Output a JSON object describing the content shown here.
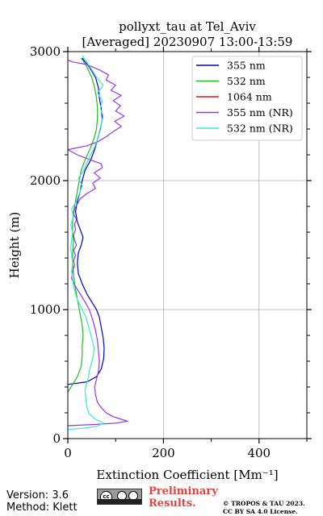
{
  "chart_data": {
    "type": "line",
    "title": "pollyxt_tau at Tel_Aviv",
    "subtitle": "[Averaged] 20230907 13:00-13:59",
    "xlabel": "Extinction Coefficient [Mm⁻¹]",
    "ylabel": "Height (m)",
    "xlim": [
      0,
      500
    ],
    "ylim": [
      0,
      3000
    ],
    "xticks": [
      "0",
      "200",
      "400"
    ],
    "yticks": [
      "0",
      "1000",
      "2000",
      "3000"
    ],
    "grid": true,
    "legend": "top-right",
    "series": [
      {
        "name": "355 nm",
        "color": "#0000cc",
        "points": [
          [
            0,
            420
          ],
          [
            40,
            440
          ],
          [
            60,
            480
          ],
          [
            70,
            540
          ],
          [
            75,
            620
          ],
          [
            76,
            700
          ],
          [
            74,
            780
          ],
          [
            70,
            860
          ],
          [
            66,
            940
          ],
          [
            60,
            1000
          ],
          [
            50,
            1060
          ],
          [
            40,
            1120
          ],
          [
            30,
            1200
          ],
          [
            22,
            1280
          ],
          [
            20,
            1360
          ],
          [
            22,
            1440
          ],
          [
            28,
            1500
          ],
          [
            32,
            1560
          ],
          [
            26,
            1620
          ],
          [
            20,
            1680
          ],
          [
            16,
            1760
          ],
          [
            20,
            1840
          ],
          [
            26,
            1920
          ],
          [
            30,
            2000
          ],
          [
            36,
            2080
          ],
          [
            48,
            2160
          ],
          [
            56,
            2240
          ],
          [
            62,
            2320
          ],
          [
            68,
            2400
          ],
          [
            72,
            2480
          ],
          [
            70,
            2560
          ],
          [
            66,
            2640
          ],
          [
            64,
            2720
          ],
          [
            58,
            2800
          ],
          [
            45,
            2880
          ],
          [
            30,
            2950
          ]
        ]
      },
      {
        "name": "532 nm",
        "color": "#22bb22",
        "points": [
          [
            0,
            360
          ],
          [
            10,
            420
          ],
          [
            20,
            480
          ],
          [
            28,
            560
          ],
          [
            30,
            640
          ],
          [
            30,
            720
          ],
          [
            32,
            800
          ],
          [
            30,
            880
          ],
          [
            26,
            960
          ],
          [
            22,
            1040
          ],
          [
            18,
            1120
          ],
          [
            14,
            1200
          ],
          [
            12,
            1280
          ],
          [
            10,
            1360
          ],
          [
            10,
            1440
          ],
          [
            12,
            1520
          ],
          [
            10,
            1600
          ],
          [
            10,
            1680
          ],
          [
            12,
            1760
          ],
          [
            16,
            1840
          ],
          [
            20,
            1920
          ],
          [
            24,
            2000
          ],
          [
            28,
            2080
          ],
          [
            36,
            2160
          ],
          [
            46,
            2240
          ],
          [
            54,
            2320
          ],
          [
            60,
            2400
          ],
          [
            62,
            2480
          ],
          [
            62,
            2560
          ],
          [
            60,
            2640
          ],
          [
            56,
            2720
          ],
          [
            50,
            2800
          ],
          [
            40,
            2880
          ],
          [
            28,
            2950
          ]
        ]
      },
      {
        "name": "1064 nm",
        "color": "#dd1111",
        "points": []
      },
      {
        "name": "355 nm (NR)",
        "color": "#9933ee",
        "points": [
          [
            0,
            100
          ],
          [
            60,
            110
          ],
          [
            100,
            120
          ],
          [
            125,
            135
          ],
          [
            112,
            150
          ],
          [
            95,
            170
          ],
          [
            80,
            200
          ],
          [
            70,
            240
          ],
          [
            62,
            280
          ],
          [
            58,
            340
          ],
          [
            56,
            400
          ],
          [
            60,
            460
          ],
          [
            64,
            520
          ],
          [
            66,
            600
          ],
          [
            64,
            680
          ],
          [
            62,
            760
          ],
          [
            58,
            840
          ],
          [
            52,
            920
          ],
          [
            45,
            1000
          ],
          [
            36,
            1060
          ],
          [
            26,
            1120
          ],
          [
            16,
            1180
          ],
          [
            8,
            1240
          ],
          [
            10,
            1300
          ],
          [
            14,
            1340
          ],
          [
            12,
            1380
          ],
          [
            16,
            1420
          ],
          [
            12,
            1460
          ],
          [
            18,
            1500
          ],
          [
            14,
            1540
          ],
          [
            12,
            1580
          ],
          [
            16,
            1620
          ],
          [
            14,
            1660
          ],
          [
            18,
            1700
          ],
          [
            12,
            1740
          ],
          [
            14,
            1780
          ],
          [
            20,
            1820
          ],
          [
            26,
            1860
          ],
          [
            40,
            1900
          ],
          [
            58,
            1940
          ],
          [
            52,
            1980
          ],
          [
            68,
            2020
          ],
          [
            55,
            2060
          ],
          [
            72,
            2100
          ],
          [
            70,
            2130
          ],
          [
            48,
            2160
          ],
          [
            20,
            2200
          ],
          [
            0,
            2240
          ],
          [
            40,
            2270
          ],
          [
            62,
            2300
          ],
          [
            80,
            2340
          ],
          [
            95,
            2380
          ],
          [
            112,
            2420
          ],
          [
            98,
            2460
          ],
          [
            118,
            2500
          ],
          [
            100,
            2540
          ],
          [
            110,
            2580
          ],
          [
            95,
            2620
          ],
          [
            112,
            2660
          ],
          [
            90,
            2700
          ],
          [
            100,
            2740
          ],
          [
            80,
            2780
          ],
          [
            85,
            2820
          ],
          [
            65,
            2860
          ],
          [
            40,
            2900
          ],
          [
            10,
            2920
          ],
          [
            0,
            2935
          ]
        ]
      },
      {
        "name": "532 nm (NR)",
        "color": "#33eecc",
        "points": [
          [
            0,
            70
          ],
          [
            30,
            80
          ],
          [
            60,
            95
          ],
          [
            75,
            120
          ],
          [
            58,
            150
          ],
          [
            45,
            190
          ],
          [
            40,
            240
          ],
          [
            38,
            300
          ],
          [
            36,
            380
          ],
          [
            42,
            460
          ],
          [
            46,
            540
          ],
          [
            52,
            620
          ],
          [
            55,
            700
          ],
          [
            50,
            780
          ],
          [
            44,
            860
          ],
          [
            38,
            940
          ],
          [
            30,
            1000
          ],
          [
            22,
            1060
          ],
          [
            16,
            1120
          ],
          [
            12,
            1180
          ],
          [
            10,
            1240
          ],
          [
            8,
            1300
          ],
          [
            10,
            1360
          ],
          [
            8,
            1420
          ],
          [
            6,
            1480
          ],
          [
            8,
            1540
          ],
          [
            10,
            1600
          ],
          [
            6,
            1660
          ],
          [
            12,
            1720
          ],
          [
            8,
            1780
          ],
          [
            18,
            1840
          ],
          [
            24,
            1900
          ],
          [
            30,
            1960
          ],
          [
            22,
            2020
          ],
          [
            34,
            2080
          ],
          [
            40,
            2140
          ],
          [
            48,
            2200
          ],
          [
            56,
            2260
          ],
          [
            62,
            2320
          ],
          [
            66,
            2380
          ],
          [
            70,
            2440
          ],
          [
            74,
            2500
          ],
          [
            68,
            2560
          ],
          [
            72,
            2620
          ],
          [
            62,
            2680
          ],
          [
            74,
            2740
          ],
          [
            60,
            2800
          ],
          [
            50,
            2860
          ],
          [
            40,
            2920
          ],
          [
            30,
            2970
          ]
        ]
      }
    ]
  },
  "footer": {
    "version": "Version: 3.6",
    "method": "Method: Klett",
    "cc_badge": "cc",
    "preliminary": [
      "Preliminary",
      "Results."
    ],
    "copyright": [
      "© TROPOS & TAU 2023.",
      "CC BY SA 4.0 License."
    ],
    "preliminary_color": "#e8413c"
  }
}
